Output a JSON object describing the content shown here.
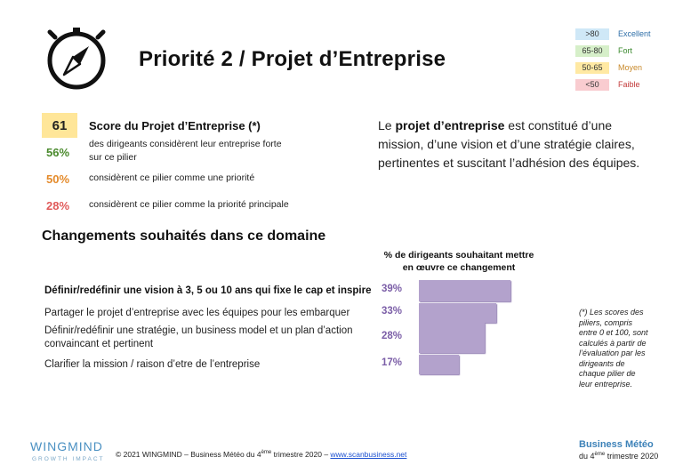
{
  "title": "Priorité 2 / Projet d’Entreprise",
  "legend": [
    {
      "range": ">80",
      "label": "Excellent",
      "color": "#cfe8f7"
    },
    {
      "range": "65-80",
      "label": "Fort",
      "color": "#d6efc9"
    },
    {
      "range": "50-65",
      "label": "Moyen",
      "color": "#ffe9a3"
    },
    {
      "range": "<50",
      "label": "Faible",
      "color": "#f9ccd0"
    }
  ],
  "legend_label_colors": [
    "#2f6fa8",
    "#3b8a2e",
    "#c8892a",
    "#c23a3a"
  ],
  "score": {
    "value": "61",
    "label": "Score du Projet d’Entreprise (*)"
  },
  "stats": [
    {
      "value": "56%",
      "color": "#4a8a2d",
      "text_line1": "des dirigeants considèrent leur entreprise forte",
      "text_line2": "sur ce pilier"
    },
    {
      "value": "50%",
      "color": "#e48a2a",
      "text_line1": "considèrent ce pilier comme une priorité",
      "text_line2": ""
    },
    {
      "value": "28%",
      "color": "#e05a5a",
      "text_line1": "considèrent ce pilier comme la priorité principale",
      "text_line2": ""
    }
  ],
  "description": {
    "bold": "projet d’entreprise",
    "prefix": "Le ",
    "suffix": " est constitué d’une mission, d’une vision et d’une stratégie claires, pertinentes et suscitant l’adhésion des équipes."
  },
  "section_title": "Changements souhaités dans ce domaine",
  "chart_header_line1": "% de dirigeants souhaitant mettre",
  "chart_header_line2": "en œuvre ce changement",
  "chart_data": {
    "type": "bar",
    "orientation": "horizontal",
    "categories": [
      "Définir/redéfinir une vision à 3, 5 ou 10 ans qui fixe le cap et inspire",
      "Partager le projet d’entreprise avec les équipes pour les embarquer",
      "Définir/redéfinir une stratégie, un business model et un plan d’action convaincant et pertinent",
      "Clarifier la mission / raison d’etre de l’entreprise"
    ],
    "category_lines": [
      [
        "Définir/redéfinir une vision à 3, 5 ou 10 ans qui fixe le cap et inspire"
      ],
      [
        "Partager le projet d’entreprise avec les équipes pour les embarquer"
      ],
      [
        "Définir/redéfinir une stratégie, un business model et un plan d’action",
        "convaincant et pertinent"
      ],
      [
        "Clarifier la mission / raison d’etre de l’entreprise"
      ]
    ],
    "values": [
      39,
      33,
      28,
      17
    ],
    "labels": [
      "39%",
      "33%",
      "28%",
      "17%"
    ],
    "bar_color": "#b3a2cc",
    "bar_edge": "#8f7bb0",
    "xlim": [
      0,
      39
    ],
    "highlight_first": true
  },
  "note": "(*) Les scores des piliers, compris entre 0 et 100, sont calculés à partir de l’évaluation par les dirigeants de chaque pilier de leur entreprise.",
  "footer": {
    "brand": "WINGMIND",
    "brand_sub": "GROWTH IMPACT",
    "text_prefix": "© 2021 WINGMIND – Business Météo du 4",
    "text_sup": "ème",
    "text_mid": " trimestre 2020 – ",
    "link": "www.scanbusiness.net",
    "bm_title": "Business Météo",
    "bm_sub_prefix": "du 4",
    "bm_sub_sup": "ème",
    "bm_sub_suffix": " trimestre 2020"
  }
}
